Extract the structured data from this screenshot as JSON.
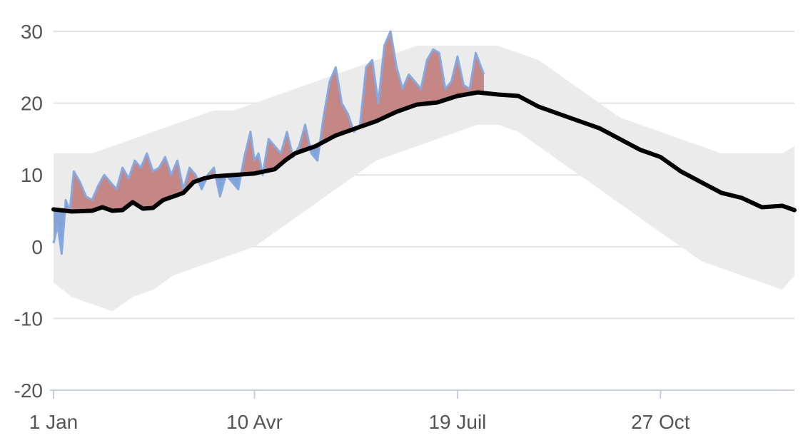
{
  "chart_data": {
    "type": "line",
    "title": "",
    "xlabel": "",
    "ylabel": "",
    "x_domain": [
      1,
      366
    ],
    "ylim": [
      -20,
      30
    ],
    "y_ticks": [
      {
        "value": 30,
        "label": "30"
      },
      {
        "value": 20,
        "label": "20"
      },
      {
        "value": 10,
        "label": "10"
      },
      {
        "value": 0,
        "label": "0"
      },
      {
        "value": -10,
        "label": "-10"
      },
      {
        "value": -20,
        "label": "-20"
      }
    ],
    "x_ticks": [
      {
        "value": 1,
        "label": "1 Jan"
      },
      {
        "value": 100,
        "label": "10 Avr"
      },
      {
        "value": 200,
        "label": "19 Juil"
      },
      {
        "value": 300,
        "label": "27 Oct"
      }
    ],
    "grid": true,
    "colors": {
      "range_band": "#ebebeb",
      "normal": "#000000",
      "above_normal": "#c17b7b",
      "below_normal": "#7c9fd8",
      "observed_line": "#86a8e0",
      "grid": "#e2e2e2",
      "axis": "#c7cfdc"
    },
    "series": [
      {
        "role": "range_band",
        "x": [
          1,
          10,
          20,
          30,
          40,
          50,
          60,
          70,
          80,
          90,
          100,
          110,
          120,
          130,
          140,
          150,
          160,
          170,
          180,
          190,
          200,
          210,
          220,
          230,
          240,
          250,
          260,
          270,
          280,
          290,
          300,
          310,
          320,
          330,
          340,
          350,
          360,
          366
        ],
        "min": [
          -5,
          -7,
          -8,
          -9,
          -7,
          -6,
          -4,
          -3,
          -2,
          -1,
          0,
          2,
          4,
          6,
          8,
          10,
          12,
          13,
          14,
          15,
          16,
          17,
          17,
          16,
          14,
          12,
          10,
          8,
          6,
          4,
          2,
          0,
          -2,
          -3,
          -4,
          -5,
          -6,
          -4
        ],
        "max": [
          13,
          13,
          13,
          14,
          15,
          16,
          17,
          18,
          19,
          19,
          20,
          21,
          22,
          23,
          24,
          25,
          26,
          27,
          28,
          28,
          28,
          28,
          28,
          27,
          26,
          24,
          22,
          20,
          18,
          17,
          16,
          15,
          14,
          13,
          13,
          13,
          13,
          14
        ]
      },
      {
        "role": "normal",
        "x": [
          1,
          10,
          20,
          25,
          30,
          35,
          40,
          45,
          50,
          55,
          60,
          65,
          70,
          75,
          80,
          90,
          100,
          110,
          115,
          120,
          130,
          140,
          150,
          160,
          170,
          180,
          190,
          200,
          210,
          220,
          230,
          240,
          250,
          260,
          270,
          280,
          290,
          300,
          310,
          320,
          330,
          340,
          350,
          360,
          366
        ],
        "values": [
          5.2,
          4.9,
          5.0,
          5.5,
          5.0,
          5.1,
          6.2,
          5.3,
          5.4,
          6.5,
          7.0,
          7.5,
          9.0,
          9.5,
          9.8,
          10.0,
          10.2,
          10.8,
          12.0,
          13.0,
          14.0,
          15.5,
          16.5,
          17.5,
          18.8,
          19.8,
          20.1,
          21.0,
          21.5,
          21.2,
          21.0,
          19.5,
          18.5,
          17.5,
          16.5,
          15.0,
          13.5,
          12.5,
          10.5,
          9.0,
          7.5,
          6.8,
          5.5,
          5.7,
          5.1
        ]
      },
      {
        "role": "observed",
        "x": [
          1,
          3,
          5,
          7,
          9,
          11,
          14,
          17,
          20,
          23,
          26,
          29,
          32,
          35,
          38,
          41,
          44,
          47,
          50,
          53,
          56,
          59,
          62,
          65,
          68,
          71,
          74,
          77,
          80,
          83,
          86,
          89,
          92,
          95,
          98,
          100,
          102,
          104,
          107,
          110,
          113,
          116,
          119,
          122,
          125,
          128,
          131,
          134,
          137,
          140,
          143,
          146,
          149,
          152,
          155,
          158,
          161,
          164,
          167,
          170,
          173,
          176,
          179,
          182,
          185,
          188,
          191,
          194,
          197,
          200,
          203,
          206,
          209,
          213
        ],
        "values": [
          0.5,
          3,
          -1,
          6.5,
          5,
          10.5,
          9,
          7,
          6.5,
          8.5,
          10,
          9,
          8,
          11,
          9.5,
          12,
          11,
          13,
          10.5,
          11,
          12.5,
          10,
          12,
          8,
          11,
          10,
          8,
          10,
          11,
          7,
          10,
          9,
          8,
          12.5,
          16,
          12,
          13,
          10,
          15,
          14,
          13,
          16,
          12.5,
          14,
          17,
          13,
          12,
          18,
          23,
          25,
          20,
          18.5,
          16,
          17,
          25,
          26,
          20,
          28,
          30,
          25,
          22,
          24,
          23,
          22,
          26,
          27.5,
          27,
          22,
          23,
          26.5,
          22.5,
          22,
          27,
          24
        ]
      }
    ]
  }
}
